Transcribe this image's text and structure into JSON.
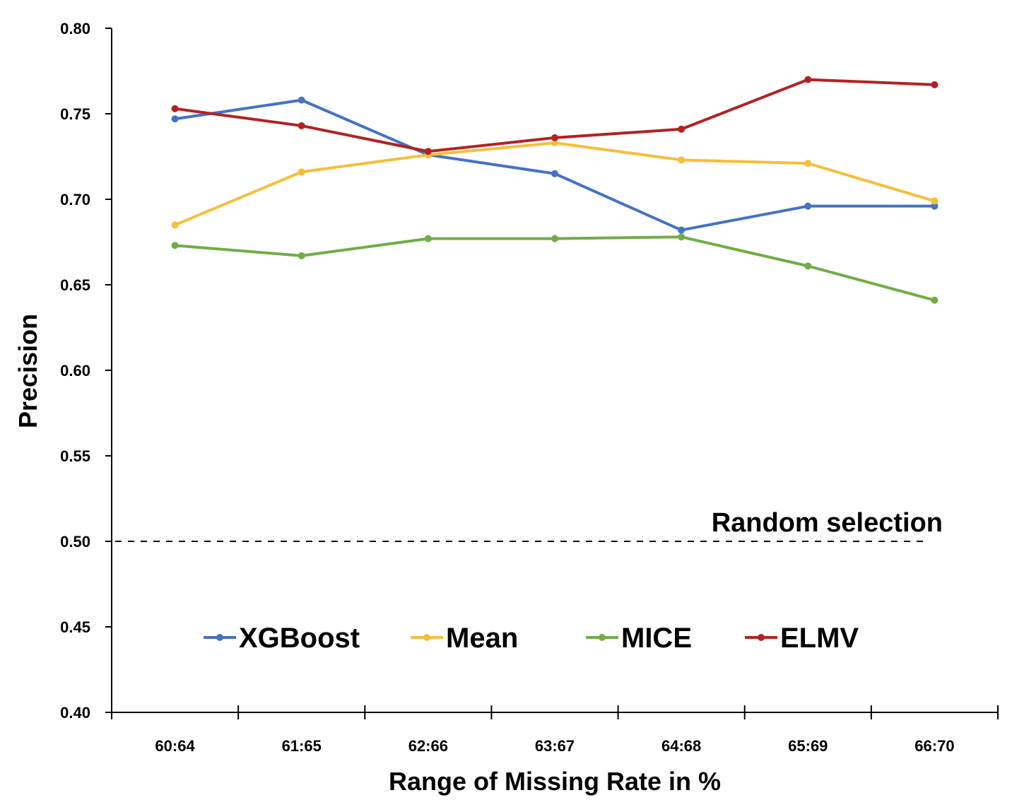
{
  "chart_data": {
    "type": "line",
    "title": "",
    "xlabel": "Range of Missing Rate in %",
    "ylabel": "Precision",
    "categories": [
      "60:64",
      "61:65",
      "62:66",
      "63:67",
      "64:68",
      "65:69",
      "66:70"
    ],
    "ylim": [
      0.4,
      0.8
    ],
    "yticks": [
      "0.40",
      "0.45",
      "0.50",
      "0.55",
      "0.60",
      "0.65",
      "0.70",
      "0.75",
      "0.80"
    ],
    "grid": false,
    "legend_position": "bottom-center",
    "series": [
      {
        "name": "XGBoost",
        "color": "#4472C4",
        "values": [
          0.747,
          0.758,
          0.726,
          0.715,
          0.682,
          0.696,
          0.696
        ]
      },
      {
        "name": "Mean",
        "color": "#F6BE3C",
        "values": [
          0.685,
          0.716,
          0.726,
          0.733,
          0.723,
          0.721,
          0.699
        ]
      },
      {
        "name": "MICE",
        "color": "#70AD47",
        "values": [
          0.673,
          0.667,
          0.677,
          0.677,
          0.678,
          0.661,
          0.641
        ]
      },
      {
        "name": "ELMV",
        "color": "#B22222",
        "values": [
          0.753,
          0.743,
          0.728,
          0.736,
          0.741,
          0.77,
          0.767
        ]
      }
    ],
    "reference_line": {
      "label": "Random selection",
      "value": 0.5,
      "style": "dashed"
    }
  }
}
